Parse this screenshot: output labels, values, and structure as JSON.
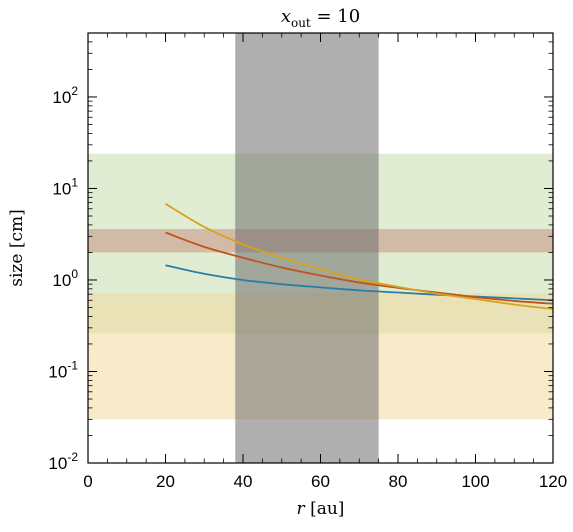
{
  "chart_data": {
    "type": "line",
    "title_math": "x_out = 10",
    "title_parts": {
      "base": "x",
      "sub": "out",
      "rest": " = 10"
    },
    "xlabel": {
      "var": "r",
      "unit": " [au]"
    },
    "ylabel": "size [cm]",
    "xlim": [
      0,
      120
    ],
    "ylim": [
      0.01,
      500
    ],
    "yscale": "log",
    "x_ticks": [
      0,
      20,
      40,
      60,
      80,
      100,
      120
    ],
    "x_tick_labels": [
      "0",
      "20",
      "40",
      "60",
      "80",
      "100",
      "120"
    ],
    "y_ticks": [
      0.01,
      0.1,
      1,
      10,
      100
    ],
    "y_tick_labels": [
      {
        "base": "10",
        "exp": "-2"
      },
      {
        "base": "10",
        "exp": "-1"
      },
      {
        "base": "10",
        "exp": "0"
      },
      {
        "base": "10",
        "exp": "1"
      },
      {
        "base": "10",
        "exp": "2"
      }
    ],
    "grid": false,
    "bands_horizontal": [
      {
        "y0": 0.26,
        "y1": 24,
        "color": "#c9dfad",
        "opacity": 0.55
      },
      {
        "y0": 0.03,
        "y1": 0.72,
        "color": "#f1d89a",
        "opacity": 0.5
      },
      {
        "y0": 2.0,
        "y1": 3.6,
        "color": "#c48a7a",
        "opacity": 0.5
      }
    ],
    "bands_vertical": [
      {
        "x0": 38,
        "x1": 75,
        "color": "#6e6e6e",
        "opacity": 0.55
      }
    ],
    "series": [
      {
        "color": "#2a7ea6",
        "x": [
          20,
          30,
          40,
          50,
          60,
          70,
          80,
          90,
          100,
          110,
          120
        ],
        "y": [
          1.45,
          1.17,
          1.0,
          0.9,
          0.83,
          0.77,
          0.73,
          0.69,
          0.66,
          0.63,
          0.6
        ]
      },
      {
        "color": "#c2521c",
        "x": [
          20,
          30,
          40,
          50,
          60,
          70,
          80,
          90,
          100,
          110,
          120
        ],
        "y": [
          3.3,
          2.3,
          1.75,
          1.37,
          1.12,
          0.94,
          0.82,
          0.73,
          0.65,
          0.59,
          0.55
        ]
      },
      {
        "color": "#d9a21c",
        "x": [
          20,
          30,
          40,
          50,
          60,
          70,
          80,
          90,
          100,
          110,
          120
        ],
        "y": [
          6.8,
          3.8,
          2.45,
          1.75,
          1.32,
          1.02,
          0.84,
          0.71,
          0.62,
          0.54,
          0.48
        ]
      }
    ]
  }
}
